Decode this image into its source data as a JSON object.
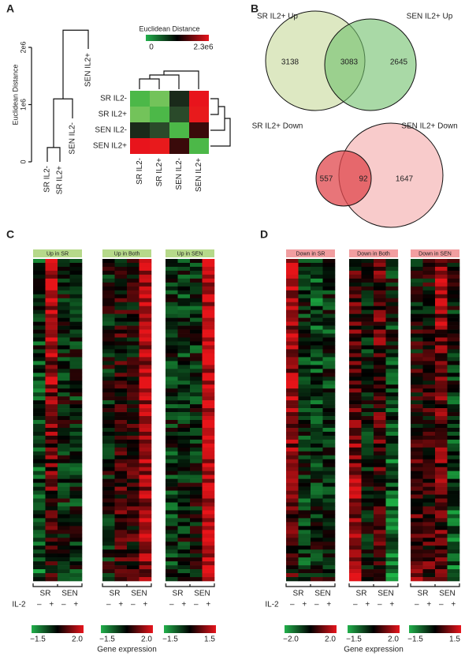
{
  "panels": {
    "a": {
      "label": "A",
      "dendrogram": {
        "axis_label": "Euclidean Distance",
        "ticks": [
          0,
          {
            "value": 1000000,
            "label": "1e6"
          },
          {
            "value": 2000000,
            "label": "2e6"
          }
        ],
        "leaves": [
          "SR IL2-",
          "SR IL2+",
          "SEN IL2-",
          "SEN IL2+"
        ],
        "merge_heights": [
          250000,
          1100000,
          2300000
        ]
      },
      "heatmap": {
        "key_title": "Euclidean Distance",
        "key_min": 0,
        "key_max": {
          "value": 2300000,
          "label": "2.3e6"
        },
        "rows": [
          "SR IL2-",
          "SR IL2+",
          "SEN IL2-",
          "SEN IL2+"
        ],
        "columns": [
          "SR IL2-",
          "SR IL2+",
          "SEN IL2-",
          "SEN IL2+"
        ]
      }
    },
    "b": {
      "label": "B",
      "up": {
        "left_title": "SR IL2+ Up",
        "right_title": "SEN IL2+ Up",
        "left_only": 3138,
        "both": 3083,
        "right_only": 2645
      },
      "down": {
        "left_title": "SR IL2+ Down",
        "right_title": "SEN IL2+ Down",
        "left_only": 557,
        "both": 92,
        "right_only": 1647
      }
    },
    "c": {
      "label": "C",
      "groups": [
        "SR",
        "SEN"
      ],
      "il2_label": "IL-2",
      "signs": [
        "–",
        "+",
        "–",
        "+"
      ],
      "key_title": "Gene expression",
      "blocks": [
        {
          "title": "Up in SR",
          "key_min": {
            "value": -1.5,
            "label": "−1.5"
          },
          "key_max": {
            "value": 2,
            "label": "2.0"
          }
        },
        {
          "title": "Up in Both",
          "key_min": {
            "value": -1.5,
            "label": "−1.5"
          },
          "key_max": {
            "value": 2,
            "label": "2.0"
          }
        },
        {
          "title": "Up in SEN",
          "key_min": {
            "value": -1.5,
            "label": "−1.5"
          },
          "key_max": 1.5
        }
      ]
    },
    "d": {
      "label": "D",
      "groups": [
        "SR",
        "SEN"
      ],
      "il2_label": "IL-2",
      "signs": [
        "–",
        "+",
        "–",
        "+"
      ],
      "key_title": "Gene expression",
      "blocks": [
        {
          "title": "Down in SR",
          "key_min": {
            "value": -2,
            "label": "−2.0"
          },
          "key_max": {
            "value": 2,
            "label": "2.0"
          }
        },
        {
          "title": "Down in Both",
          "key_min": {
            "value": -1.5,
            "label": "−1.5"
          },
          "key_max": {
            "value": 2,
            "label": "2.0"
          }
        },
        {
          "title": "Down in SEN",
          "key_min": {
            "value": -1.5,
            "label": "−1.5"
          },
          "key_max": 1.5
        }
      ]
    }
  }
}
